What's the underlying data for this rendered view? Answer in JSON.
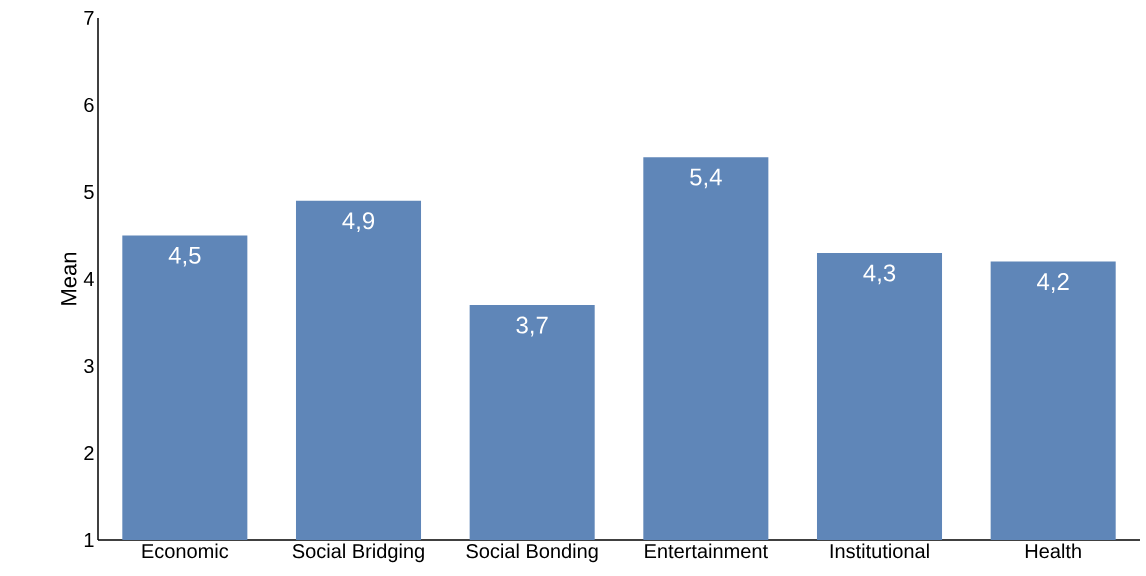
{
  "chart_data": {
    "type": "bar",
    "ylabel": "Mean",
    "categories": [
      "Economic",
      "Social Bridging",
      "Social Bonding",
      "Entertainment",
      "Institutional",
      "Health"
    ],
    "values": [
      4.5,
      4.9,
      3.7,
      5.4,
      4.3,
      4.2
    ],
    "value_labels": [
      "4,5",
      "4,9",
      "3,7",
      "5,4",
      "4,3",
      "4,2"
    ],
    "color": "#5f86b8",
    "ylim": [
      1,
      7
    ],
    "yticks": [
      1,
      2,
      3,
      4,
      5,
      6,
      7
    ],
    "grid": false
  }
}
